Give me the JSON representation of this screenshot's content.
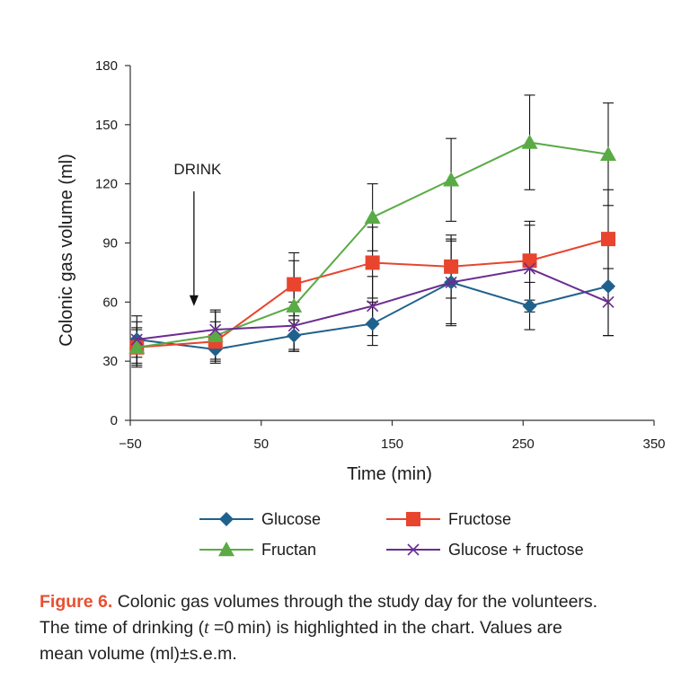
{
  "chart_data": {
    "type": "line",
    "title": "",
    "xlabel": "Time (min)",
    "ylabel": "Colonic gas volume (ml)",
    "xlim": [
      -50,
      350
    ],
    "ylim": [
      0,
      180
    ],
    "x_ticks": [
      -50,
      50,
      150,
      250,
      350
    ],
    "x_tick_labels": [
      "−50",
      "50",
      "150",
      "250",
      "350"
    ],
    "y_ticks": [
      0,
      30,
      60,
      90,
      120,
      150,
      180
    ],
    "y_tick_labels": [
      "0",
      "30",
      "60",
      "90",
      "120",
      "150",
      "180"
    ],
    "x": [
      -45,
      15,
      75,
      135,
      195,
      255,
      315
    ],
    "annotation": {
      "text": "DRINK",
      "x": 0,
      "arrow_from_y": 118,
      "arrow_to_y": 58
    },
    "grid": false,
    "legend_position": "bottom",
    "series": [
      {
        "name": "Glucose",
        "color": "#1f618d",
        "marker": "diamond",
        "values": [
          41,
          36,
          43,
          49,
          70,
          58,
          68
        ],
        "errors": [
          12,
          7,
          8,
          11,
          22,
          12,
          25
        ]
      },
      {
        "name": "Fructose",
        "color": "#e8442e",
        "marker": "square",
        "values": [
          37,
          40,
          69,
          80,
          78,
          81,
          92
        ],
        "errors": [
          9,
          10,
          16,
          18,
          16,
          20,
          25
        ]
      },
      {
        "name": "Fructan",
        "color": "#5aab46",
        "marker": "triangle",
        "values": [
          37,
          43,
          58,
          103,
          122,
          141,
          135
        ],
        "errors": [
          10,
          12,
          23,
          17,
          21,
          24,
          26
        ]
      },
      {
        "name": "Glucose + fructose",
        "color": "#6a2c91",
        "marker": "cross",
        "values": [
          41,
          46,
          48,
          58,
          70,
          77,
          60
        ],
        "errors": [
          9,
          10,
          12,
          15,
          21,
          22,
          17
        ]
      }
    ]
  },
  "caption": {
    "label": "Figure 6.",
    "line1_text": " Colonic gas volumes through the study day for the volunteers.",
    "line2_prefix": "The time of drinking (",
    "line2_var": "t",
    "line2_eq": " =0 min",
    "line2_suffix": ") is highlighted in the chart. Values are",
    "line3": "mean volume (ml)±s.e.m."
  }
}
